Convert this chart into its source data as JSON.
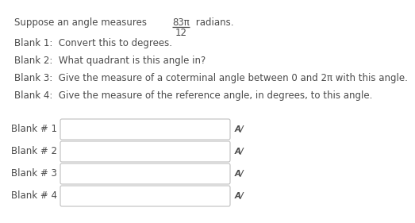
{
  "background_color": "#ffffff",
  "text_color": "#4a4a4a",
  "box_edge_color": "#c0c0c0",
  "box_face_color": "#ffffff",
  "font_size": 8.5,
  "fraction_num": "83π",
  "fraction_den": "12",
  "header_prefix": "Suppose an angle measures",
  "header_suffix": "radians.",
  "blanks_text": [
    "Blank 1:  Convert this to degrees.",
    "Blank 2:  What quadrant is this angle in?",
    "Blank 3:  Give the measure of a coterminal angle between 0 and 2π with this angle.",
    "Blank 4:  Give the measure of the reference angle, in degrees, to this angle."
  ],
  "input_labels": [
    "Blank # 1",
    "Blank # 2",
    "Blank # 3",
    "Blank # 4"
  ],
  "input_symbol": "A/"
}
